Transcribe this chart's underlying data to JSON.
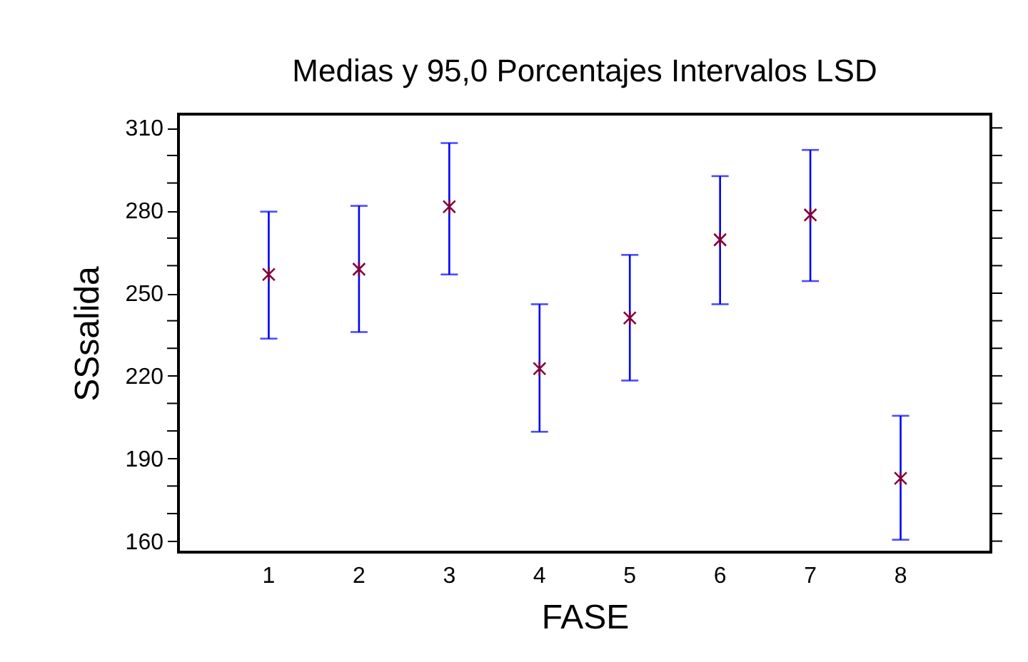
{
  "chart_data": {
    "type": "scatter",
    "title": "Medias y 95,0 Porcentajes Intervalos LSD",
    "xlabel": "FASE",
    "ylabel": "SSsalida",
    "categories": [
      "1",
      "2",
      "3",
      "4",
      "5",
      "6",
      "7",
      "8"
    ],
    "series": [
      {
        "color": "#800040",
        "values": [
          256.8,
          258.7,
          281.4,
          222.6,
          241.0,
          269.4,
          278.4,
          182.8
        ],
        "errors": [
          [
            233.5,
            279.6
          ],
          [
            235.9,
            281.7
          ],
          [
            256.8,
            304.5
          ],
          [
            199.7,
            246.0
          ],
          [
            218.3,
            263.9
          ],
          [
            246.0,
            292.5
          ],
          [
            254.4,
            302.0
          ],
          [
            160.5,
            205.5
          ]
        ]
      }
    ],
    "ylim": [
      156,
      315
    ],
    "yticks": [
      160,
      {
        "value": 170,
        "label": null
      },
      {
        "value": 180,
        "label": null
      },
      190,
      {
        "value": 200,
        "label": null
      },
      {
        "value": 210,
        "label": null
      },
      220,
      {
        "value": 230,
        "label": null
      },
      {
        "value": 240,
        "label": null
      },
      250,
      {
        "value": 260,
        "label": null
      },
      {
        "value": 270,
        "label": null
      },
      280,
      {
        "value": 290,
        "label": null
      },
      {
        "value": 300,
        "label": null
      },
      310
    ],
    "marker": "cross",
    "grid": false
  }
}
